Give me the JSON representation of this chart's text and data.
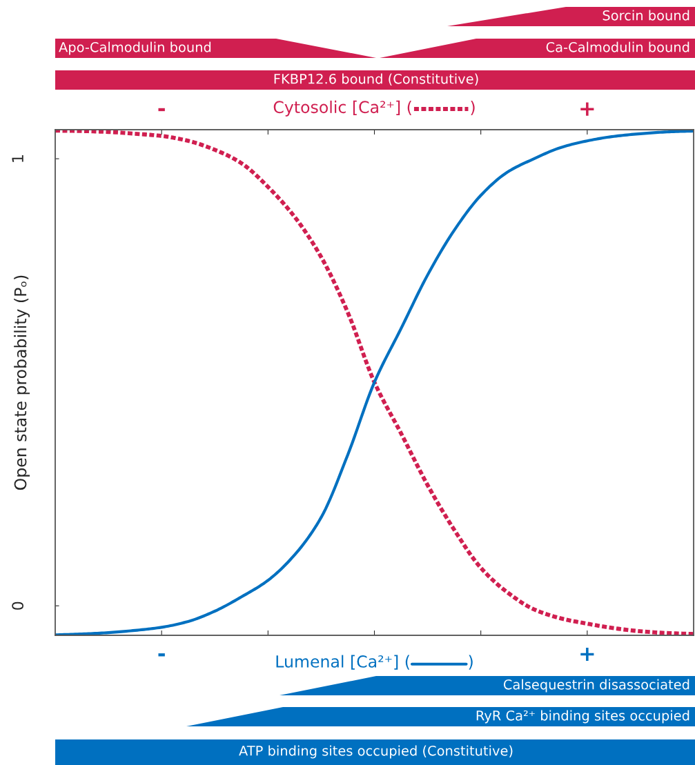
{
  "chart_data": {
    "type": "line",
    "ylabel": "Open state probability (Pₒ)",
    "xlabel": "Lumenal [Ca²⁺] (           )",
    "x2label": "Cytosolic [Ca²⁺] (           )",
    "categories": [
      null,
      null,
      null,
      null,
      "-",
      null,
      null,
      null,
      null,
      null,
      null,
      null,
      null,
      null,
      null,
      null,
      null,
      null,
      null,
      null,
      "+",
      null,
      null,
      null,
      null
    ],
    "ylim": [
      -0.066,
      1.065
    ],
    "yticks": [
      0,
      1
    ],
    "grid": false,
    "legend": false,
    "series": [
      {
        "color": "#d01f50",
        "line_style": "dotted",
        "values": [
          1.063,
          1.062,
          1.06,
          1.056,
          1.051,
          1.04,
          1.02,
          0.99,
          0.937,
          0.87,
          0.78,
          0.656,
          0.5,
          0.386,
          0.27,
          0.17,
          0.085,
          0.03,
          -0.008,
          -0.028,
          -0.04,
          -0.05,
          -0.057,
          -0.061,
          -0.063
        ]
      },
      {
        "color": "#0070c0",
        "line_style": "solid",
        "values": [
          -0.065,
          -0.063,
          -0.06,
          -0.055,
          -0.048,
          -0.035,
          -0.012,
          0.02,
          0.057,
          0.114,
          0.198,
          0.338,
          0.5,
          0.62,
          0.74,
          0.84,
          0.918,
          0.97,
          1.0,
          1.025,
          1.04,
          1.05,
          1.056,
          1.06,
          1.062
        ]
      }
    ],
    "annotations": [
      "Sorcin bound",
      "Apo-Calmodulin bound",
      "Ca-Calmodulin bound",
      "FKBP12.6 bound (Constitutive)",
      "Calsequestrin disassociated",
      "RyR Ca²⁺ binding sites occupied",
      "ATP binding sites occupied (Constitutive)"
    ]
  }
}
